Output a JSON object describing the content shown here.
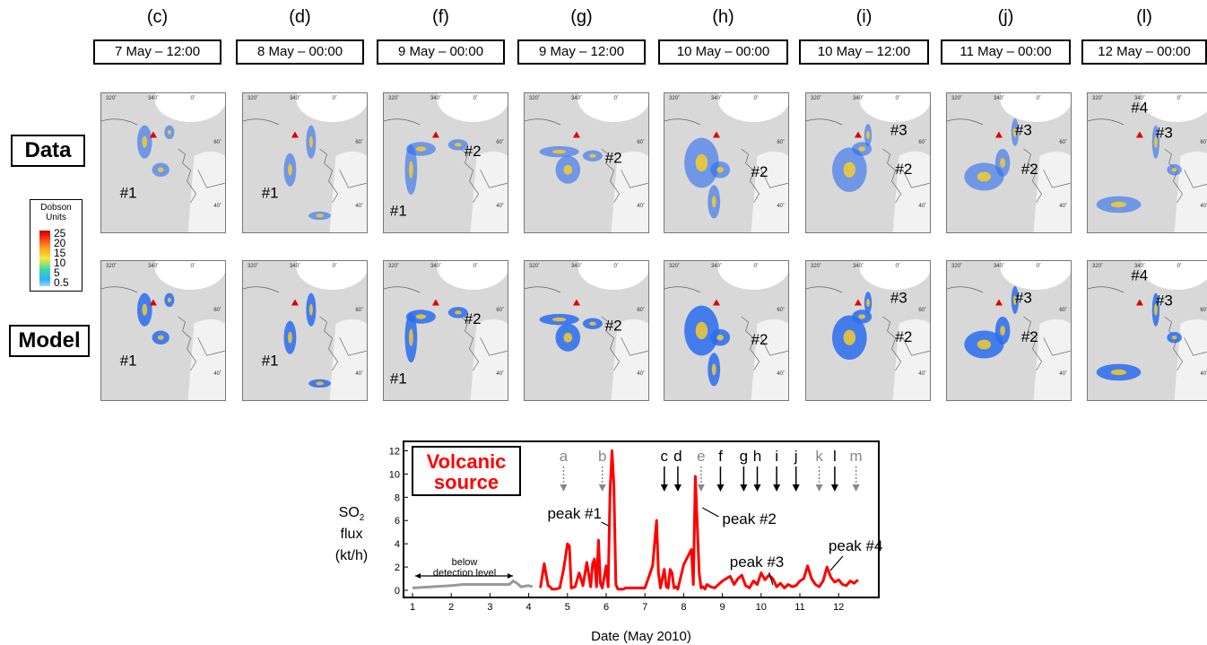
{
  "panels": [
    {
      "letter": "(c)",
      "date": "7 May – 12:00"
    },
    {
      "letter": "(d)",
      "date": "8 May – 00:00"
    },
    {
      "letter": "(f)",
      "date": "9 May – 00:00"
    },
    {
      "letter": "(g)",
      "date": "9 May – 12:00"
    },
    {
      "letter": "(h)",
      "date": "10 May – 00:00"
    },
    {
      "letter": "(i)",
      "date": "10 May – 12:00"
    },
    {
      "letter": "(j)",
      "date": "11 May – 00:00"
    },
    {
      "letter": "(l)",
      "date": "12 May – 00:00"
    }
  ],
  "row_labels": {
    "data": "Data",
    "model": "Model"
  },
  "map_ticks": {
    "lon": [
      "320˚",
      "340˚",
      "0˚"
    ],
    "lat": [
      "60˚",
      "40˚"
    ]
  },
  "legend": {
    "title_line1": "Dobson",
    "title_line2": "Units",
    "ticks": [
      "25",
      "20",
      "15",
      "10",
      "5",
      "0.5"
    ]
  },
  "annotations": {
    "data": [
      [
        "#1"
      ],
      [
        "#1"
      ],
      [
        "#2",
        "#1"
      ],
      [
        "#2"
      ],
      [
        "#2"
      ],
      [
        "#3",
        "#2"
      ],
      [
        "#3",
        "#2"
      ],
      [
        "#4",
        "#3"
      ]
    ],
    "model": [
      [
        "#1"
      ],
      [
        "#1"
      ],
      [
        "#2",
        "#1"
      ],
      [
        "#2"
      ],
      [
        "#2"
      ],
      [
        "#3",
        "#2"
      ],
      [
        "#3",
        "#2"
      ],
      [
        "#4",
        "#3"
      ]
    ]
  },
  "colors": {
    "volcano_marker": "#e00000",
    "plume_low": "#2a6cf0",
    "plume_high": "#ffd020",
    "land": "#dcdcdc",
    "series": "#ff0000",
    "below_detection": "#999999"
  },
  "chart_data": {
    "type": "line",
    "title": "Volcanic source",
    "ylabel": "SO₂ flux (kt/h)",
    "ylabel_parts": {
      "main": "SO",
      "sub": "2",
      "line2": "flux",
      "line3": "(kt/h)"
    },
    "xlabel": "Date (May 2010)",
    "xlim": [
      1,
      13
    ],
    "ylim": [
      0,
      12.5
    ],
    "xticks": [
      "1",
      "2",
      "3",
      "4",
      "5",
      "6",
      "7",
      "8",
      "9",
      "10",
      "11",
      "12"
    ],
    "yticks": [
      "0",
      "2",
      "4",
      "6",
      "8",
      "10",
      "12"
    ],
    "below_detection": {
      "label_line1": "below",
      "label_line2": "detection level",
      "x": [
        1.0,
        1.5,
        2.0,
        2.3,
        2.6,
        3.0,
        3.3,
        3.5,
        3.6,
        3.7,
        3.8,
        4.0,
        4.1
      ],
      "y": [
        0.2,
        0.3,
        0.4,
        0.5,
        0.5,
        0.5,
        0.5,
        0.5,
        0.8,
        0.6,
        0.3,
        0.4,
        0.3
      ]
    },
    "series": [
      {
        "x": [
          4.3,
          4.4,
          4.5,
          4.55,
          4.6,
          4.7,
          4.8,
          4.9,
          5.0,
          5.05,
          5.1,
          5.2,
          5.3,
          5.4,
          5.5,
          5.6,
          5.65,
          5.7,
          5.75,
          5.8,
          5.85,
          5.9,
          6.0,
          6.05,
          6.1,
          6.15,
          6.2,
          6.25,
          6.3,
          6.35,
          6.4,
          6.45,
          6.5,
          7.0,
          7.2,
          7.3,
          7.35,
          7.4,
          7.5,
          7.55,
          7.6,
          7.65,
          7.7,
          7.75,
          7.8,
          7.85,
          8.0,
          8.2,
          8.25,
          8.3,
          8.4,
          8.45,
          8.5,
          8.55,
          8.6,
          8.7,
          8.8,
          8.9,
          9.0,
          9.2,
          9.3,
          9.4,
          9.5,
          9.6,
          9.7,
          9.8,
          9.9,
          10.0,
          10.1,
          10.2,
          10.3,
          10.4,
          10.5,
          10.6,
          10.7,
          10.8,
          10.9,
          11.0,
          11.1,
          11.2,
          11.3,
          11.4,
          11.5,
          11.6,
          11.7,
          11.8,
          11.9,
          12.0,
          12.1,
          12.2,
          12.3,
          12.4,
          12.5
        ],
        "y": [
          0.2,
          2.3,
          0.4,
          0.3,
          0.1,
          0.1,
          0.2,
          1.8,
          4.0,
          3.8,
          0.2,
          0.3,
          1.5,
          0.4,
          2.4,
          0.3,
          2.3,
          2.7,
          0.3,
          4.3,
          0.6,
          0.2,
          2.1,
          0.3,
          8.5,
          12.0,
          9.0,
          0.5,
          0.1,
          0.1,
          0.1,
          0.1,
          0.2,
          0.2,
          2.1,
          6.0,
          1.5,
          0.2,
          1.8,
          0.3,
          0.2,
          1.8,
          1.5,
          0.2,
          0.3,
          0.1,
          2.2,
          3.5,
          0.5,
          9.8,
          1.5,
          0.2,
          0.3,
          0.1,
          0.5,
          0.3,
          0.2,
          0.5,
          0.8,
          1.2,
          0.5,
          1.0,
          1.3,
          0.4,
          0.2,
          0.8,
          0.5,
          1.5,
          0.9,
          1.3,
          1.0,
          0.3,
          0.6,
          0.2,
          0.5,
          0.3,
          0.4,
          0.8,
          1.0,
          2.1,
          1.0,
          0.5,
          0.3,
          0.8,
          2.0,
          1.1,
          0.7,
          0.9,
          0.5,
          0.4,
          0.8,
          0.6,
          0.9
        ]
      }
    ],
    "event_markers": [
      {
        "label": "a",
        "x": 4.9,
        "style": "dotted"
      },
      {
        "label": "b",
        "x": 5.9,
        "style": "dotted"
      },
      {
        "label": "c",
        "x": 7.5,
        "style": "solid"
      },
      {
        "label": "d",
        "x": 7.85,
        "style": "solid"
      },
      {
        "label": "e",
        "x": 8.45,
        "style": "dotted"
      },
      {
        "label": "f",
        "x": 8.95,
        "style": "solid"
      },
      {
        "label": "g",
        "x": 9.55,
        "style": "solid"
      },
      {
        "label": "h",
        "x": 9.9,
        "style": "solid"
      },
      {
        "label": "i",
        "x": 10.4,
        "style": "solid"
      },
      {
        "label": "j",
        "x": 10.9,
        "style": "solid"
      },
      {
        "label": "k",
        "x": 11.5,
        "style": "dotted"
      },
      {
        "label": "l",
        "x": 11.9,
        "style": "solid"
      },
      {
        "label": "m",
        "x": 12.45,
        "style": "dotted"
      }
    ],
    "annotations": [
      {
        "text": "peak #1",
        "x": 6.15,
        "y": 12.0
      },
      {
        "text": "peak #2",
        "x": 8.3,
        "y": 9.8
      },
      {
        "text": "peak #3",
        "x": 10.3,
        "y": 1.5
      },
      {
        "text": "peak #4",
        "x": 11.6,
        "y": 2.0
      }
    ]
  }
}
